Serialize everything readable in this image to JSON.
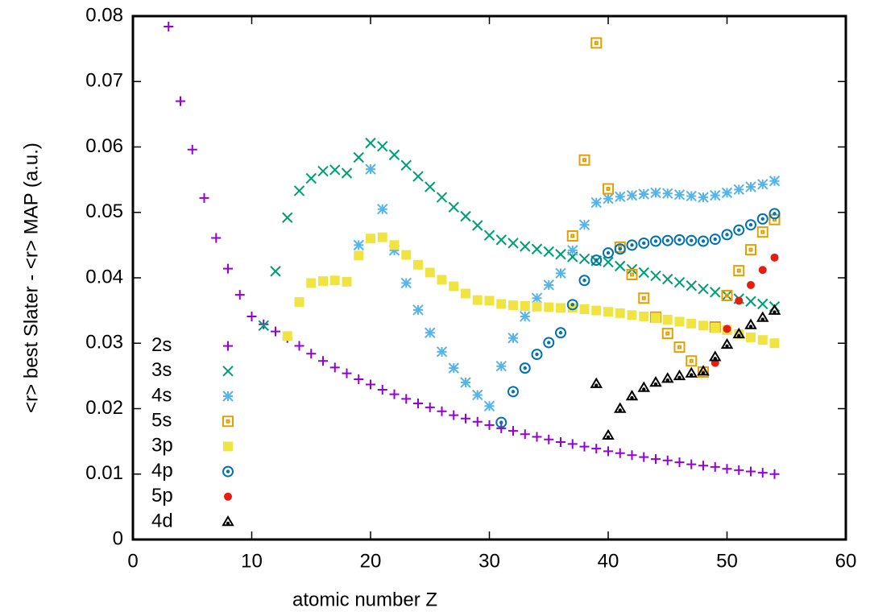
{
  "chart_data": {
    "type": "scatter",
    "x_label": "atomic number Z",
    "y_label": "<r> best Slater - <r> MAP (a.u.)",
    "xlim": [
      0,
      60
    ],
    "xticks": [
      0,
      10,
      20,
      30,
      40,
      50,
      60
    ],
    "ylim": [
      0,
      0.08
    ],
    "yticks": [
      0,
      0.01,
      0.02,
      0.03,
      0.04,
      0.05,
      0.06,
      0.07,
      0.08
    ],
    "legend": "lower left",
    "series": [
      {
        "name": "2s",
        "color": "#9400d3",
        "marker": "plus",
        "x": [
          3,
          4,
          5,
          6,
          7,
          8,
          9,
          10,
          11,
          12,
          13,
          14,
          15,
          16,
          17,
          18,
          19,
          20,
          21,
          22,
          23,
          24,
          25,
          26,
          27,
          28,
          29,
          30,
          31,
          32,
          33,
          34,
          35,
          36,
          37,
          38,
          39,
          40,
          41,
          42,
          43,
          44,
          45,
          46,
          47,
          48,
          49,
          50,
          51,
          52,
          53,
          54
        ],
        "values": [
          0.0784,
          0.067,
          0.0596,
          0.0522,
          0.0461,
          0.0414,
          0.0374,
          0.0341,
          0.0329,
          0.0318,
          0.0308,
          0.0296,
          0.0284,
          0.0273,
          0.0263,
          0.0254,
          0.0245,
          0.0237,
          0.0229,
          0.0222,
          0.0215,
          0.0208,
          0.0202,
          0.0196,
          0.019,
          0.0185,
          0.018,
          0.0175,
          0.017,
          0.0166,
          0.0161,
          0.0157,
          0.0153,
          0.0149,
          0.0146,
          0.0142,
          0.0139,
          0.0135,
          0.0132,
          0.0129,
          0.0126,
          0.0123,
          0.0121,
          0.0118,
          0.0115,
          0.0113,
          0.0111,
          0.0108,
          0.0106,
          0.0104,
          0.0102,
          0.01
        ]
      },
      {
        "name": "3s",
        "color": "#009e73",
        "marker": "cross",
        "x": [
          11,
          12,
          13,
          14,
          15,
          16,
          17,
          18,
          19,
          20,
          21,
          22,
          23,
          24,
          25,
          26,
          27,
          28,
          29,
          30,
          31,
          32,
          33,
          34,
          35,
          36,
          37,
          38,
          39,
          40,
          41,
          42,
          43,
          44,
          45,
          46,
          47,
          48,
          49,
          50,
          51,
          52,
          53,
          54
        ],
        "values": [
          0.0327,
          0.041,
          0.0492,
          0.0533,
          0.0552,
          0.0563,
          0.0565,
          0.056,
          0.0584,
          0.0606,
          0.0601,
          0.0588,
          0.0572,
          0.0555,
          0.0539,
          0.0523,
          0.0508,
          0.0494,
          0.048,
          0.0465,
          0.0458,
          0.0453,
          0.0448,
          0.0444,
          0.044,
          0.0436,
          0.0432,
          0.0429,
          0.0426,
          0.0424,
          0.0418,
          0.0413,
          0.0408,
          0.0403,
          0.0398,
          0.0393,
          0.0388,
          0.0383,
          0.0378,
          0.0373,
          0.0368,
          0.0364,
          0.036,
          0.0356
        ]
      },
      {
        "name": "4s",
        "color": "#56b4e9",
        "marker": "star",
        "x": [
          19,
          20,
          21,
          22,
          23,
          24,
          25,
          26,
          27,
          28,
          29,
          30,
          31,
          32,
          33,
          34,
          35,
          36,
          37,
          38,
          39,
          40,
          41,
          42,
          43,
          44,
          45,
          46,
          47,
          48,
          49,
          50,
          51,
          52,
          53,
          54
        ],
        "values": [
          0.045,
          0.0566,
          0.0505,
          0.0442,
          0.0392,
          0.0351,
          0.0316,
          0.0287,
          0.0262,
          0.024,
          0.0221,
          0.0204,
          0.0265,
          0.0308,
          0.0341,
          0.0369,
          0.0389,
          0.0407,
          0.0442,
          0.0481,
          0.0515,
          0.0521,
          0.0524,
          0.0526,
          0.0528,
          0.053,
          0.0529,
          0.0527,
          0.0525,
          0.0523,
          0.0526,
          0.053,
          0.0535,
          0.0539,
          0.0543,
          0.0548
        ]
      },
      {
        "name": "5s",
        "color": "#e69f00",
        "marker": "boxdot",
        "x": [
          37,
          38,
          39,
          40,
          41,
          42,
          43,
          44,
          45,
          46,
          47,
          48,
          49,
          50,
          51,
          52,
          53,
          54
        ],
        "values": [
          0.0464,
          0.058,
          0.0759,
          0.0536,
          0.0447,
          0.0405,
          0.0369,
          0.034,
          0.0315,
          0.0294,
          0.0273,
          0.0256,
          0.0325,
          0.0373,
          0.0411,
          0.0443,
          0.047,
          0.0489
        ]
      },
      {
        "name": "3p",
        "color": "#f0e442",
        "marker": "square",
        "x": [
          13,
          14,
          15,
          16,
          17,
          18,
          19,
          20,
          21,
          22,
          23,
          24,
          25,
          26,
          27,
          28,
          29,
          30,
          31,
          32,
          33,
          34,
          35,
          36,
          37,
          38,
          39,
          40,
          41,
          42,
          43,
          44,
          45,
          46,
          47,
          48,
          49,
          50,
          51,
          52,
          53,
          54
        ],
        "values": [
          0.0311,
          0.0363,
          0.0392,
          0.0395,
          0.0396,
          0.0394,
          0.0434,
          0.046,
          0.0462,
          0.045,
          0.0435,
          0.042,
          0.0408,
          0.0397,
          0.0387,
          0.0376,
          0.0366,
          0.0365,
          0.036,
          0.0358,
          0.0357,
          0.0356,
          0.0355,
          0.0354,
          0.0354,
          0.0352,
          0.035,
          0.0348,
          0.0346,
          0.0343,
          0.0341,
          0.0339,
          0.0336,
          0.0333,
          0.033,
          0.0327,
          0.0323,
          0.032,
          0.0314,
          0.0309,
          0.0305,
          0.03
        ]
      },
      {
        "name": "4p",
        "color": "#0072b2",
        "marker": "circledot",
        "x": [
          31,
          32,
          33,
          34,
          35,
          36,
          37,
          38,
          39,
          40,
          41,
          42,
          43,
          44,
          45,
          46,
          47,
          48,
          49,
          50,
          51,
          52,
          53,
          54
        ],
        "values": [
          0.0179,
          0.0226,
          0.0262,
          0.0283,
          0.0301,
          0.0316,
          0.0359,
          0.0396,
          0.0427,
          0.0438,
          0.0444,
          0.045,
          0.0453,
          0.0456,
          0.0457,
          0.0458,
          0.0457,
          0.0456,
          0.0459,
          0.0466,
          0.0473,
          0.0481,
          0.049,
          0.0498
        ]
      },
      {
        "name": "5p",
        "color": "#e51e10",
        "marker": "dot",
        "x": [
          49,
          50,
          51,
          52,
          53,
          54
        ],
        "values": [
          0.027,
          0.0322,
          0.0365,
          0.0389,
          0.0412,
          0.0431
        ]
      },
      {
        "name": "4d",
        "color": "#000000",
        "marker": "triangle",
        "x": [
          39,
          40,
          41,
          42,
          43,
          44,
          45,
          46,
          47,
          48,
          49,
          50,
          51,
          52,
          53,
          54
        ],
        "values": [
          0.0238,
          0.0159,
          0.02,
          0.0219,
          0.0232,
          0.024,
          0.0246,
          0.025,
          0.0254,
          0.0257,
          0.0279,
          0.0298,
          0.0314,
          0.0328,
          0.0339,
          0.035
        ]
      }
    ]
  }
}
